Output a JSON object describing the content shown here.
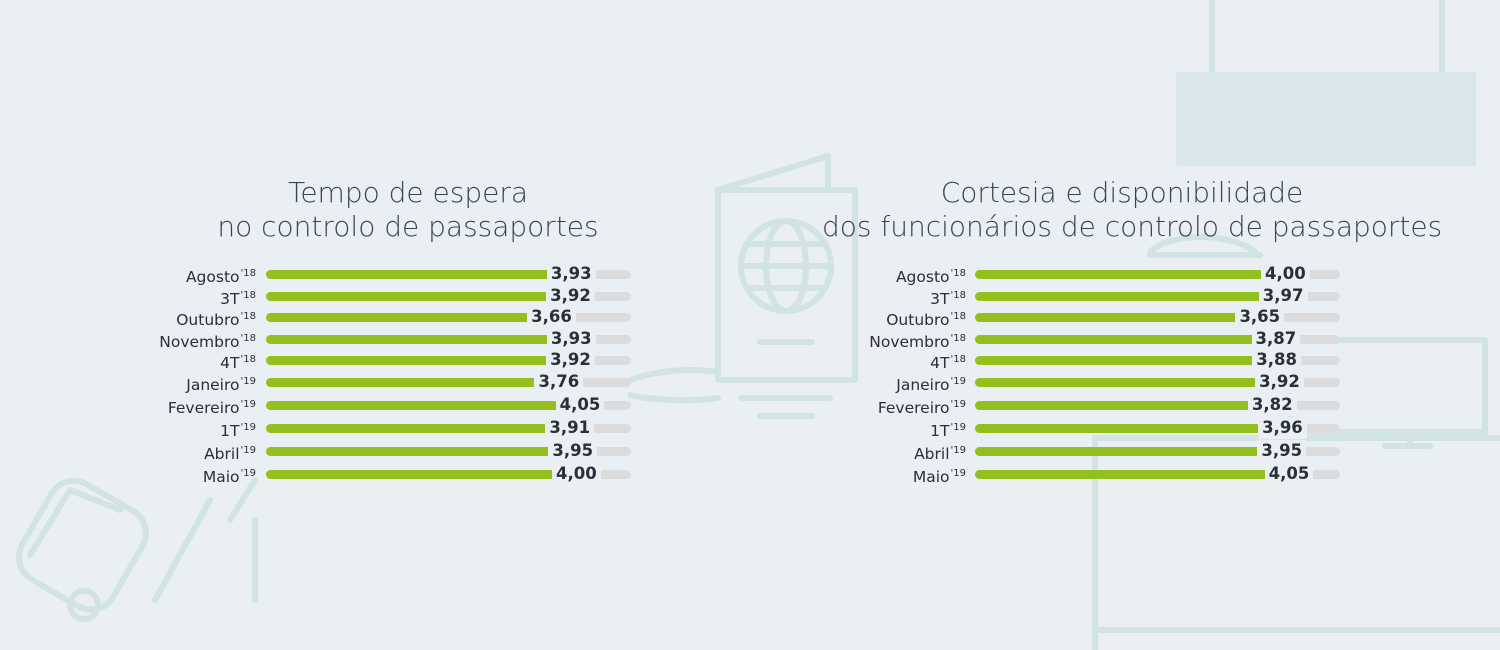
{
  "chart_data": [
    {
      "type": "bar",
      "orientation": "horizontal",
      "title": [
        "Tempo de espera",
        "no controlo de passaportes"
      ],
      "categories": [
        {
          "label": "Agosto",
          "sup": "'18"
        },
        {
          "label": "3T",
          "sup": "'18"
        },
        {
          "label": "Outubro",
          "sup": "'18"
        },
        {
          "label": "Novembro",
          "sup": "'18"
        },
        {
          "label": "4T",
          "sup": "'18"
        },
        {
          "label": "Janeiro",
          "sup": "'19"
        },
        {
          "label": "Fevereiro",
          "sup": "'19"
        },
        {
          "label": "1T",
          "sup": "'19"
        },
        {
          "label": "Abril",
          "sup": "'19"
        },
        {
          "label": "Maio",
          "sup": "'19"
        }
      ],
      "values": [
        3.93,
        3.92,
        3.66,
        3.93,
        3.92,
        3.76,
        4.05,
        3.91,
        3.95,
        4.0
      ],
      "value_labels": [
        "3,93",
        "3,92",
        "3,66",
        "3,93",
        "3,92",
        "3,76",
        "4,05",
        "3,91",
        "3,95",
        "4,00"
      ],
      "xlim": [
        0,
        5
      ],
      "grid": false,
      "legend": "none",
      "colors": {
        "bar": "#93c01f",
        "track": "#dcdcdc"
      }
    },
    {
      "type": "bar",
      "orientation": "horizontal",
      "title": [
        "Cortesia e disponibilidade",
        "dos funcionários de controlo de passaportes"
      ],
      "categories": [
        {
          "label": "Agosto",
          "sup": "'18"
        },
        {
          "label": "3T",
          "sup": "'18"
        },
        {
          "label": "Outubro",
          "sup": "'18"
        },
        {
          "label": "Novembro",
          "sup": "'18"
        },
        {
          "label": "4T",
          "sup": "'18"
        },
        {
          "label": "Janeiro",
          "sup": "'19"
        },
        {
          "label": "Fevereiro",
          "sup": "'19"
        },
        {
          "label": "1T",
          "sup": "'19"
        },
        {
          "label": "Abril",
          "sup": "'19"
        },
        {
          "label": "Maio",
          "sup": "'19"
        }
      ],
      "values": [
        4.0,
        3.97,
        3.65,
        3.87,
        3.88,
        3.92,
        3.82,
        3.96,
        3.95,
        4.05
      ],
      "value_labels": [
        "4,00",
        "3,97",
        "3,65",
        "3,87",
        "3,88",
        "3,92",
        "3,82",
        "3,96",
        "3,95",
        "4,05"
      ],
      "xlim": [
        0,
        5
      ],
      "grid": false,
      "legend": "none",
      "colors": {
        "bar": "#93c01f",
        "track": "#dcdcdc"
      }
    }
  ],
  "colors": {
    "background": "#e9eff3",
    "decor_line": "#d2e3e3",
    "title_text": "#3b4350"
  }
}
